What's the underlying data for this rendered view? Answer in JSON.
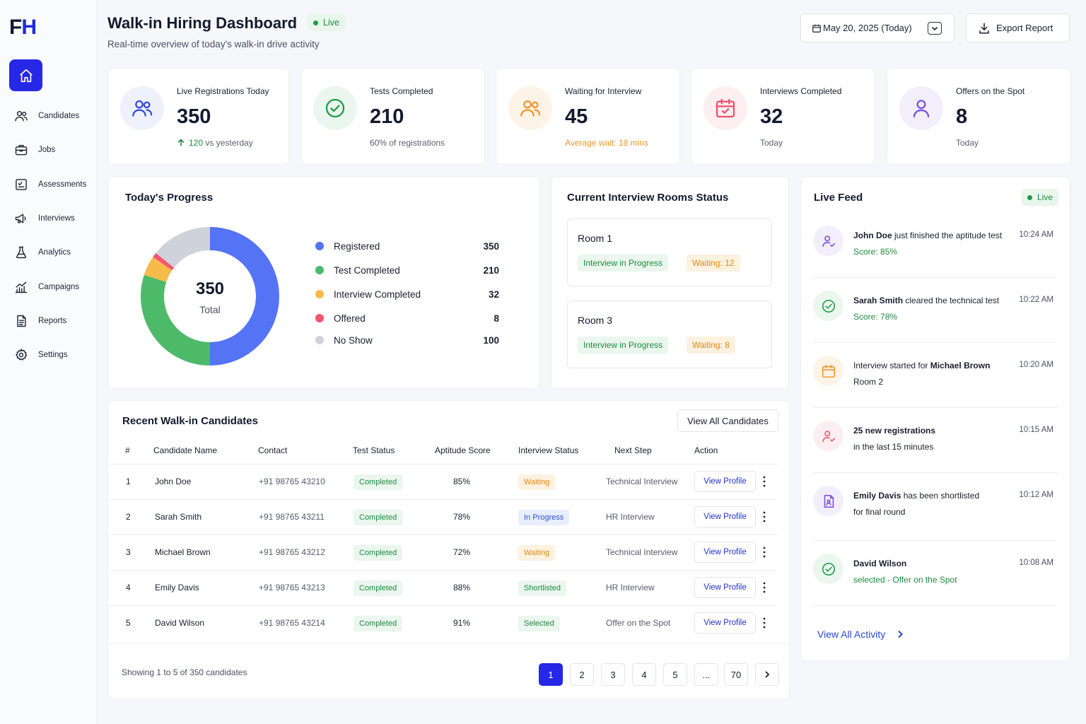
{
  "brand": {
    "logo_f": "F",
    "logo_h": "H"
  },
  "sidebar": {
    "items": [
      {
        "label": "Candidates",
        "icon": "users-icon"
      },
      {
        "label": "Jobs",
        "icon": "briefcase-icon"
      },
      {
        "label": "Assessments",
        "icon": "assessment-icon"
      },
      {
        "label": "Interviews",
        "icon": "megaphone-icon"
      },
      {
        "label": "Analytics",
        "icon": "flask-icon"
      },
      {
        "label": "Campaigns",
        "icon": "bar-chart-icon"
      },
      {
        "label": "Reports",
        "icon": "document-icon"
      },
      {
        "label": "Settings",
        "icon": "gear-icon"
      }
    ]
  },
  "header": {
    "title": "Walk-in Hiring Dashboard",
    "live": "Live",
    "subtitle": "Real-time overview of today's walk-in drive activity",
    "date": "May 20, 2025 (Today)",
    "export": "Export Report"
  },
  "stats": [
    {
      "label": "Live Registrations Today",
      "value": "350",
      "sub": "120 vs yesterday",
      "color": "#3448d6",
      "bg": "#eef0fb"
    },
    {
      "label": "Tests Completed",
      "value": "210",
      "sub": "60% of registrations",
      "color": "#1e9c45",
      "bg": "#eaf6ee"
    },
    {
      "label": "Waiting for Interview",
      "value": "45",
      "sub": "Average wait: 18 mins",
      "color": "#f0962a",
      "bg": "#fdf3e6"
    },
    {
      "label": "Interviews Completed",
      "value": "32",
      "sub": "Today",
      "color": "#f0506e",
      "bg": "#fdeef1"
    },
    {
      "label": "Offers on the Spot",
      "value": "8",
      "sub": "Today",
      "color": "#7a4fe0",
      "bg": "#f3eefc"
    }
  ],
  "progress": {
    "title": "Today's Progress",
    "total_value": "350",
    "total_label": "Total",
    "legend": [
      {
        "label": "Registered",
        "value": "350",
        "color": "#5473f5"
      },
      {
        "label": "Test Completed",
        "value": "210",
        "color": "#4dba6a"
      },
      {
        "label": "Interview Completed",
        "value": "32",
        "color": "#f7bb4a"
      },
      {
        "label": "Offered",
        "value": "8",
        "color": "#f4566f"
      },
      {
        "label": "No Show",
        "value": "100",
        "color": "#cfd2da"
      }
    ]
  },
  "chart_data": {
    "type": "pie",
    "categories": [
      "Registered",
      "Test Completed",
      "Interview Completed",
      "Offered",
      "No Show"
    ],
    "values": [
      350,
      210,
      32,
      8,
      100
    ],
    "title": "Today's Progress"
  },
  "rooms": {
    "title": "Current Interview Rooms Status",
    "items": [
      {
        "name": "Room 1",
        "status": "Interview in Progress",
        "waiting": "Waiting: 12"
      },
      {
        "name": "Room 3",
        "status": "Interview in Progress",
        "waiting": "Waiting: 8"
      }
    ]
  },
  "table": {
    "title": "Recent Walk-in Candidates",
    "view_all": "View All Candidates",
    "columns": [
      "#",
      "Candidate Name",
      "Contact",
      "Test Status",
      "Aptitude Score",
      "Interview Status",
      "Next Step",
      "Action"
    ],
    "rows": [
      {
        "n": "1",
        "name": "John Doe",
        "contact": "+91 98765 43210",
        "test": "Completed",
        "score": "85%",
        "interview": "Waiting",
        "istyle": "orange",
        "next": "Technical Interview",
        "action": "View Profile"
      },
      {
        "n": "2",
        "name": "Sarah Smith",
        "contact": "+91 98765 43211",
        "test": "Completed",
        "score": "78%",
        "interview": "In Progress",
        "istyle": "blue",
        "next": "HR Interview",
        "action": "View Profile"
      },
      {
        "n": "3",
        "name": "Michael Brown",
        "contact": "+91 98765 43212",
        "test": "Completed",
        "score": "72%",
        "interview": "Waiting",
        "istyle": "orange",
        "next": "Technical Interview",
        "action": "View Profile"
      },
      {
        "n": "4",
        "name": "Emily Davis",
        "contact": "+91 98765 43213",
        "test": "Completed",
        "score": "88%",
        "interview": "Shortlisted",
        "istyle": "green",
        "next": "HR Interview",
        "action": "View Profile"
      },
      {
        "n": "5",
        "name": "David Wilson",
        "contact": "+91 98765 43214",
        "test": "Completed",
        "score": "91%",
        "interview": "Selected",
        "istyle": "green",
        "next": "Offer on the Spot",
        "action": "View Profile"
      }
    ],
    "showing": "Showing 1 to 5 of 350 candidates",
    "pages": [
      "1",
      "2",
      "3",
      "4",
      "5",
      "...",
      "70"
    ]
  },
  "feed": {
    "title": "Live Feed",
    "live": "Live",
    "items": [
      {
        "pre": "",
        "bold": "John Doe",
        "post": " just finished the aptitude test",
        "sub": "Score: 85%",
        "sub_green": true,
        "time": "10:24 AM",
        "icon": "user-check-icon",
        "color": "#7a4fe0",
        "bg": "#f3eefc"
      },
      {
        "pre": "",
        "bold": "Sarah Smith",
        "post": " cleared the technical test",
        "sub": "Score: 78%",
        "sub_green": true,
        "time": "10:22 AM",
        "icon": "check-circle-icon",
        "color": "#1e9c45",
        "bg": "#eaf6ee"
      },
      {
        "pre": "Interview started for ",
        "bold": "Michael Brown",
        "post": "",
        "sub": "Room 2",
        "sub_green": false,
        "time": "10:20 AM",
        "icon": "calendar-icon",
        "color": "#f0962a",
        "bg": "#fdf3e6"
      },
      {
        "pre": "",
        "bold": "25 new registrations",
        "post": "",
        "sub": "in the last 15 minutes",
        "sub_green": false,
        "time": "10:15 AM",
        "icon": "user-add-icon",
        "color": "#f0506e",
        "bg": "#fdeef1"
      },
      {
        "pre": "",
        "bold": "Emily Davis",
        "post": " has been shortlisted",
        "sub": "for final round",
        "sub_green": false,
        "time": "10:12 AM",
        "icon": "document-user-icon",
        "color": "#7a4fe0",
        "bg": "#f3eefc"
      },
      {
        "pre": "",
        "bold": "David Wilson",
        "post": "",
        "sub": "selected - Offer on the Spot",
        "sub_green": true,
        "time": "10:08 AM",
        "icon": "check-circle-icon",
        "color": "#1e9c45",
        "bg": "#eaf6ee"
      }
    ],
    "view_all": "View All Activity"
  }
}
